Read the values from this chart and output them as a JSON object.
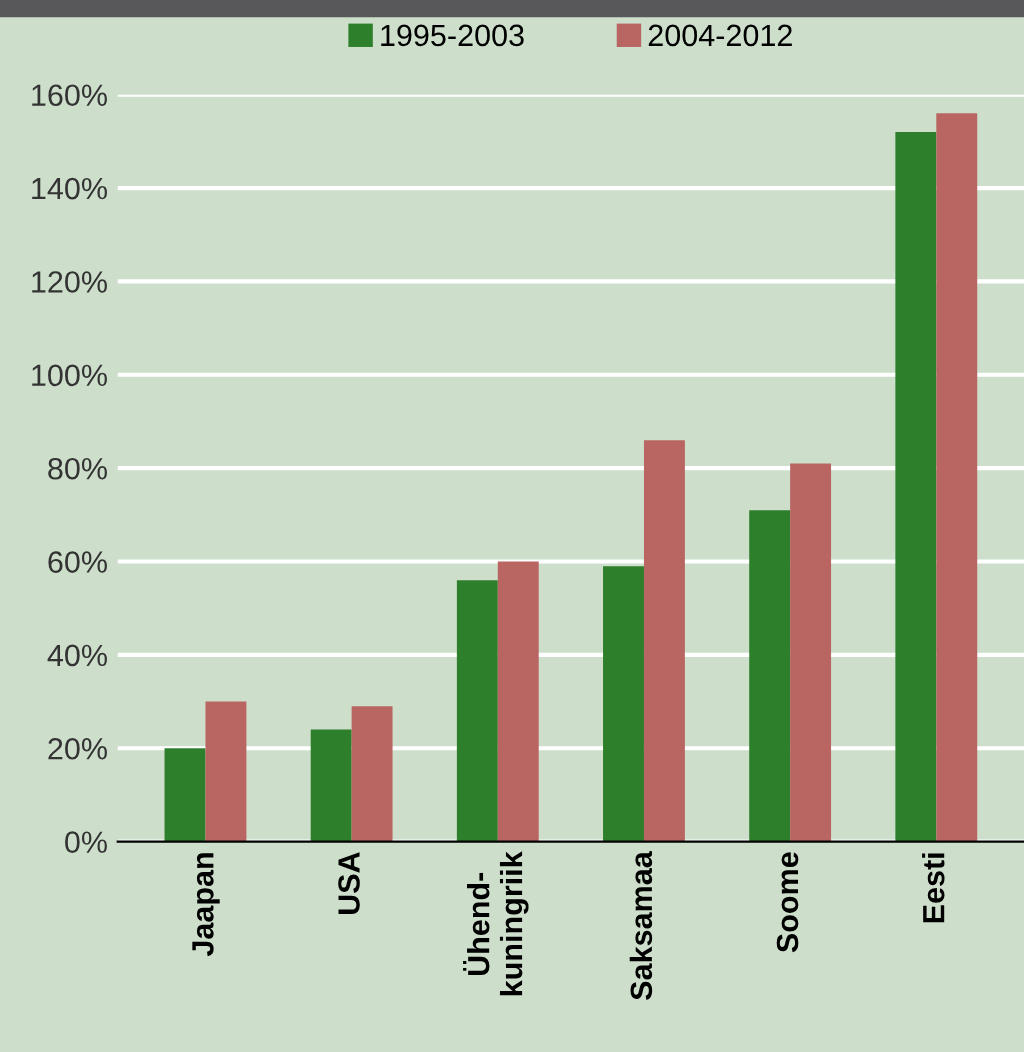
{
  "chart_data": {
    "type": "bar",
    "categories": [
      "Jaapan",
      "USA",
      "Ühend-\nkuningriik",
      "Saksamaa",
      "Soome",
      "Eesti"
    ],
    "series": [
      {
        "name": "1995-2003",
        "color": "#2e7f2b",
        "values": [
          20,
          24,
          56,
          59,
          71,
          152
        ]
      },
      {
        "name": "2004-2012",
        "color": "#b96663",
        "values": [
          30,
          29,
          60,
          86,
          81,
          156
        ]
      }
    ],
    "ylim": [
      0,
      160
    ],
    "yticks": [
      {
        "value": 0,
        "label": "0%"
      },
      {
        "value": 20,
        "label": "20%"
      },
      {
        "value": 40,
        "label": "40%"
      },
      {
        "value": 60,
        "label": "60%"
      },
      {
        "value": 80,
        "label": "80%"
      },
      {
        "value": 100,
        "label": "100%"
      },
      {
        "value": 120,
        "label": "120%"
      },
      {
        "value": 140,
        "label": "140%"
      },
      {
        "value": 160,
        "label": "160%"
      }
    ],
    "grid": "y",
    "legend": "top"
  }
}
